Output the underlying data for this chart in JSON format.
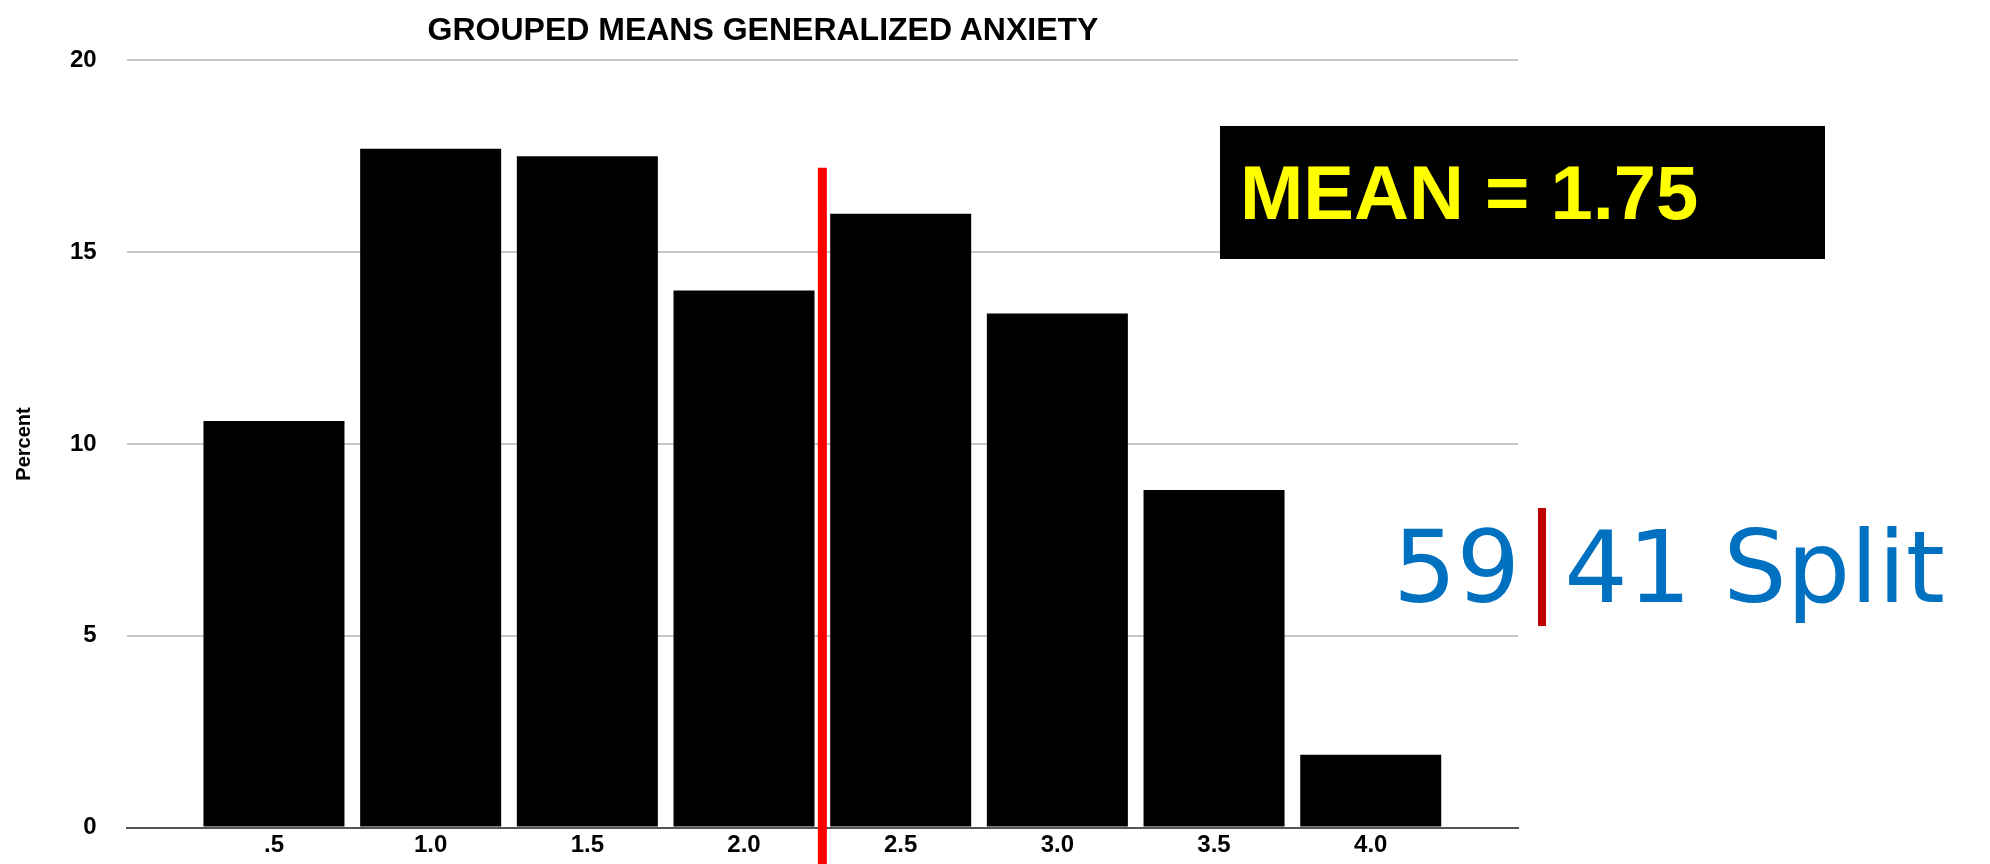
{
  "chart_data": {
    "type": "bar",
    "title": "GROUPED MEANS GENERALIZED ANXIETY",
    "ylabel": "Percent",
    "x": [
      0.5,
      1.0,
      1.5,
      2.0,
      2.5,
      3.0,
      3.5,
      4.0
    ],
    "values": [
      10.6,
      17.7,
      17.5,
      14.0,
      16.0,
      13.4,
      8.8,
      1.9
    ],
    "color": "#000000",
    "xlim": [
      0.03,
      4.47
    ],
    "xticks": [
      {
        "value": 0.5,
        "label": ".5"
      },
      {
        "value": 1.0,
        "label": "1.0"
      },
      {
        "value": 1.5,
        "label": "1.5"
      },
      {
        "value": 2.0,
        "label": "2.0"
      },
      {
        "value": 2.5,
        "label": "2.5"
      },
      {
        "value": 3.0,
        "label": "3.0"
      },
      {
        "value": 3.5,
        "label": "3.5"
      },
      {
        "value": 4.0,
        "label": "4.0"
      }
    ],
    "ylim": [
      0,
      20
    ],
    "yticks": [
      0,
      5,
      10,
      15,
      20
    ],
    "grid": "y",
    "ref_lines": [
      {
        "axis": "x",
        "value": 2.25,
        "color": "#ff0000"
      }
    ],
    "annotations": [
      "MEAN = 1.75",
      "59",
      "41 Split"
    ]
  }
}
